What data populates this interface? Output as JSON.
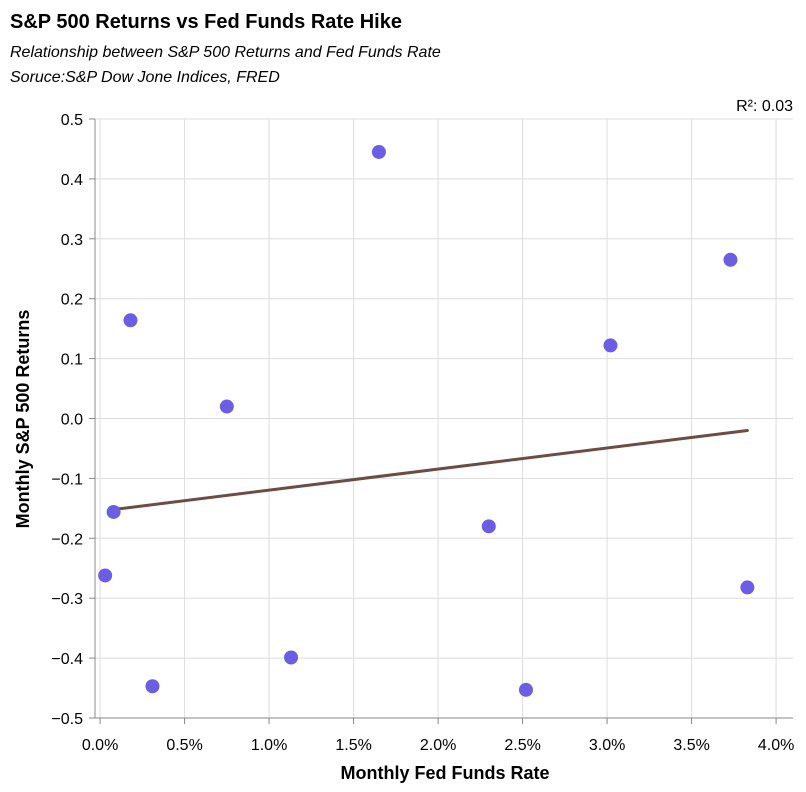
{
  "chart_data": {
    "type": "scatter",
    "title": "S&P 500 Returns vs Fed Funds Rate Hike",
    "subtitle_lines": [
      "Relationship between S&P 500 Returns and Fed Funds Rate",
      "Soruce:S&P Dow Jone Indices, FRED"
    ],
    "xlabel": "Monthly Fed Funds Rate",
    "ylabel": "Monthly S&P 500 Returns",
    "xlim": [
      -0.0003,
      0.041
    ],
    "ylim": [
      -0.5,
      0.5
    ],
    "x_ticks": [
      0,
      0.005,
      0.01,
      0.015,
      0.02,
      0.025,
      0.03,
      0.035,
      0.04
    ],
    "x_tick_labels": [
      "0.0%",
      "0.5%",
      "1.0%",
      "1.5%",
      "2.0%",
      "2.5%",
      "3.0%",
      "3.5%",
      "4.0%"
    ],
    "y_ticks": [
      -0.5,
      -0.4,
      -0.3,
      -0.2,
      -0.1,
      0,
      0.1,
      0.2,
      0.3,
      0.4,
      0.5
    ],
    "y_tick_labels": [
      "−0.5",
      "−0.4",
      "−0.3",
      "−0.2",
      "−0.1",
      "0.0",
      "0.1",
      "0.2",
      "0.3",
      "0.4",
      "0.5"
    ],
    "grid": true,
    "points": [
      {
        "x": 0.0003,
        "y": -0.262
      },
      {
        "x": 0.0008,
        "y": -0.156
      },
      {
        "x": 0.0018,
        "y": 0.164
      },
      {
        "x": 0.0031,
        "y": -0.447
      },
      {
        "x": 0.0075,
        "y": 0.02
      },
      {
        "x": 0.0113,
        "y": -0.399
      },
      {
        "x": 0.0165,
        "y": 0.445
      },
      {
        "x": 0.023,
        "y": -0.18
      },
      {
        "x": 0.0252,
        "y": -0.453
      },
      {
        "x": 0.0302,
        "y": 0.122
      },
      {
        "x": 0.0373,
        "y": 0.265
      },
      {
        "x": 0.0383,
        "y": -0.282
      }
    ],
    "trendline": {
      "x": [
        0.0008,
        0.0383
      ],
      "y": [
        -0.152,
        -0.02
      ]
    },
    "annotation": "R²: 0.03",
    "colors": {
      "point": "#6b5ee4",
      "trendline": "#6d4c41"
    }
  }
}
